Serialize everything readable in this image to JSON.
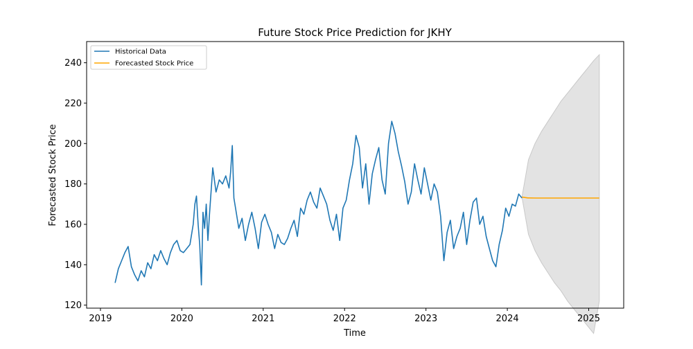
{
  "chart_data": {
    "type": "line",
    "title": "Future Stock Price Prediction for JKHY",
    "xlabel": "Time",
    "ylabel": "Forecasted Stock Price",
    "xlim": [
      2018.83,
      2025.43
    ],
    "ylim": [
      118.5,
      250.5
    ],
    "x_ticks": [
      2019,
      2020,
      2021,
      2022,
      2023,
      2024,
      2025
    ],
    "x_tick_labels": [
      "2019",
      "2020",
      "2021",
      "2022",
      "2023",
      "2024",
      "2025"
    ],
    "y_ticks": [
      120,
      140,
      160,
      180,
      200,
      220,
      240
    ],
    "y_tick_labels": [
      "120",
      "140",
      "160",
      "180",
      "200",
      "220",
      "240"
    ],
    "grid": false,
    "legend": {
      "placement": "top-left",
      "entries": [
        "Historical Data",
        "Forecasted Stock Price"
      ]
    },
    "colors": {
      "historical": "#1f77b4",
      "forecast": "#ffa500",
      "band": "#d9d9d9",
      "band_edge": "#c8c8c8"
    },
    "series": [
      {
        "name": "Historical Data",
        "x": [
          2019.18,
          2019.22,
          2019.26,
          2019.3,
          2019.34,
          2019.38,
          2019.42,
          2019.46,
          2019.5,
          2019.54,
          2019.58,
          2019.62,
          2019.66,
          2019.7,
          2019.74,
          2019.78,
          2019.82,
          2019.86,
          2019.9,
          2019.94,
          2019.98,
          2020.02,
          2020.06,
          2020.1,
          2020.14,
          2020.16,
          2020.18,
          2020.2,
          2020.22,
          2020.24,
          2020.26,
          2020.28,
          2020.3,
          2020.32,
          2020.34,
          2020.38,
          2020.42,
          2020.46,
          2020.5,
          2020.54,
          2020.58,
          2020.6,
          2020.62,
          2020.64,
          2020.66,
          2020.7,
          2020.74,
          2020.78,
          2020.82,
          2020.86,
          2020.9,
          2020.94,
          2020.98,
          2021.02,
          2021.06,
          2021.1,
          2021.14,
          2021.18,
          2021.22,
          2021.26,
          2021.3,
          2021.34,
          2021.38,
          2021.42,
          2021.46,
          2021.5,
          2021.54,
          2021.58,
          2021.62,
          2021.66,
          2021.7,
          2021.74,
          2021.78,
          2021.82,
          2021.86,
          2021.9,
          2021.94,
          2021.98,
          2022.02,
          2022.06,
          2022.1,
          2022.14,
          2022.18,
          2022.22,
          2022.26,
          2022.3,
          2022.34,
          2022.38,
          2022.42,
          2022.46,
          2022.5,
          2022.54,
          2022.58,
          2022.62,
          2022.66,
          2022.7,
          2022.74,
          2022.78,
          2022.82,
          2022.86,
          2022.9,
          2022.94,
          2022.98,
          2023.02,
          2023.06,
          2023.1,
          2023.14,
          2023.18,
          2023.22,
          2023.26,
          2023.3,
          2023.34,
          2023.38,
          2023.42,
          2023.46,
          2023.5,
          2023.54,
          2023.58,
          2023.62,
          2023.66,
          2023.7,
          2023.74,
          2023.78,
          2023.82,
          2023.86,
          2023.9,
          2023.94,
          2023.98,
          2024.02,
          2024.06,
          2024.1,
          2024.14,
          2024.18
        ],
        "values": [
          131,
          138,
          142,
          146,
          149,
          139,
          135,
          132,
          137,
          134,
          141,
          138,
          145,
          142,
          147,
          143,
          140,
          146,
          150,
          152,
          147,
          146,
          148,
          150,
          160,
          170,
          174,
          160,
          150,
          130,
          166,
          158,
          170,
          152,
          165,
          188,
          176,
          182,
          180,
          184,
          178,
          186,
          199,
          173,
          168,
          158,
          163,
          152,
          160,
          166,
          158,
          148,
          161,
          165,
          160,
          156,
          148,
          155,
          151,
          150,
          153,
          158,
          162,
          154,
          168,
          165,
          172,
          176,
          171,
          168,
          178,
          174,
          170,
          162,
          157,
          165,
          152,
          168,
          172,
          182,
          190,
          204,
          198,
          178,
          190,
          170,
          185,
          192,
          198,
          182,
          175,
          200,
          211,
          205,
          196,
          189,
          181,
          170,
          176,
          190,
          182,
          175,
          188,
          180,
          172,
          180,
          176,
          164,
          142,
          156,
          162,
          148,
          154,
          158,
          166,
          150,
          162,
          171,
          173,
          160,
          164,
          154,
          148,
          142,
          139,
          150,
          157,
          168,
          164,
          170,
          169,
          175,
          173
        ]
      },
      {
        "name": "Forecasted Stock Price",
        "x": [
          2024.18,
          2024.25,
          2024.35,
          2024.5,
          2024.7,
          2024.9,
          2025.1,
          2025.13
        ],
        "values": [
          173.5,
          173.1,
          173.0,
          173.0,
          173.0,
          173.0,
          173.0,
          173.0
        ]
      }
    ],
    "confidence_band": {
      "x": [
        2024.18,
        2024.26,
        2024.34,
        2024.42,
        2024.5,
        2024.58,
        2024.66,
        2024.74,
        2024.82,
        2024.9,
        2024.98,
        2025.06,
        2025.13
      ],
      "upper": [
        173.5,
        192,
        200,
        206,
        211,
        216,
        221,
        225,
        229,
        233,
        237,
        241,
        244
      ],
      "lower": [
        173.5,
        155,
        147,
        141,
        136,
        131,
        127,
        122,
        118,
        114,
        110,
        106,
        122
      ]
    }
  }
}
